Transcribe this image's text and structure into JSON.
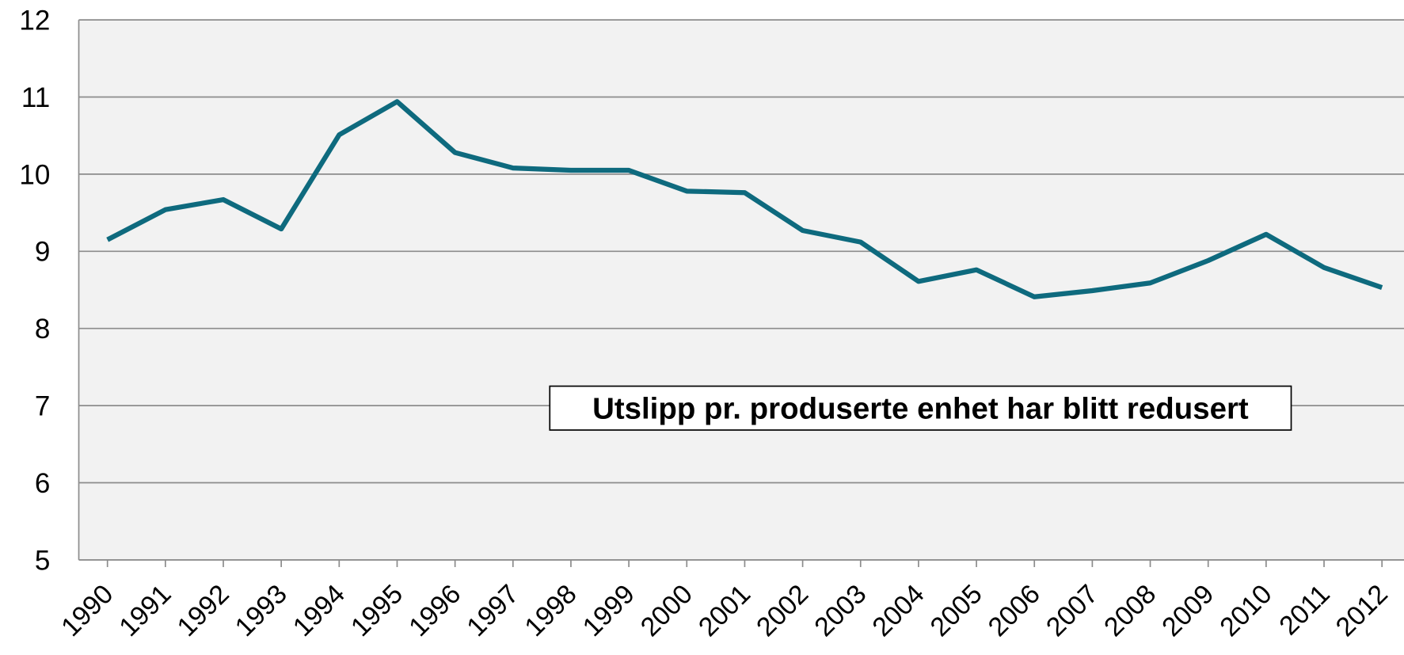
{
  "chart_data": {
    "type": "line",
    "annotation": "Utslipp pr. produserte enhet har blitt redusert",
    "categories": [
      "1990",
      "1991",
      "1992",
      "1993",
      "1994",
      "1995",
      "1996",
      "1997",
      "1998",
      "1999",
      "2000",
      "2001",
      "2002",
      "2003",
      "2004",
      "2005",
      "2006",
      "2007",
      "2008",
      "2009",
      "2010",
      "2011",
      "2012"
    ],
    "series": [
      {
        "color": "#0e6a7e",
        "values": [
          9.15,
          9.54,
          9.67,
          9.29,
          10.51,
          10.94,
          10.28,
          10.08,
          10.05,
          10.05,
          9.78,
          9.76,
          9.27,
          9.12,
          8.61,
          8.76,
          8.41,
          8.49,
          8.59,
          8.88,
          9.22,
          8.79,
          8.53
        ]
      }
    ],
    "ylim": [
      5,
      12
    ],
    "yticks": [
      5,
      6,
      7,
      8,
      9,
      10,
      11,
      12
    ],
    "grid": true
  }
}
